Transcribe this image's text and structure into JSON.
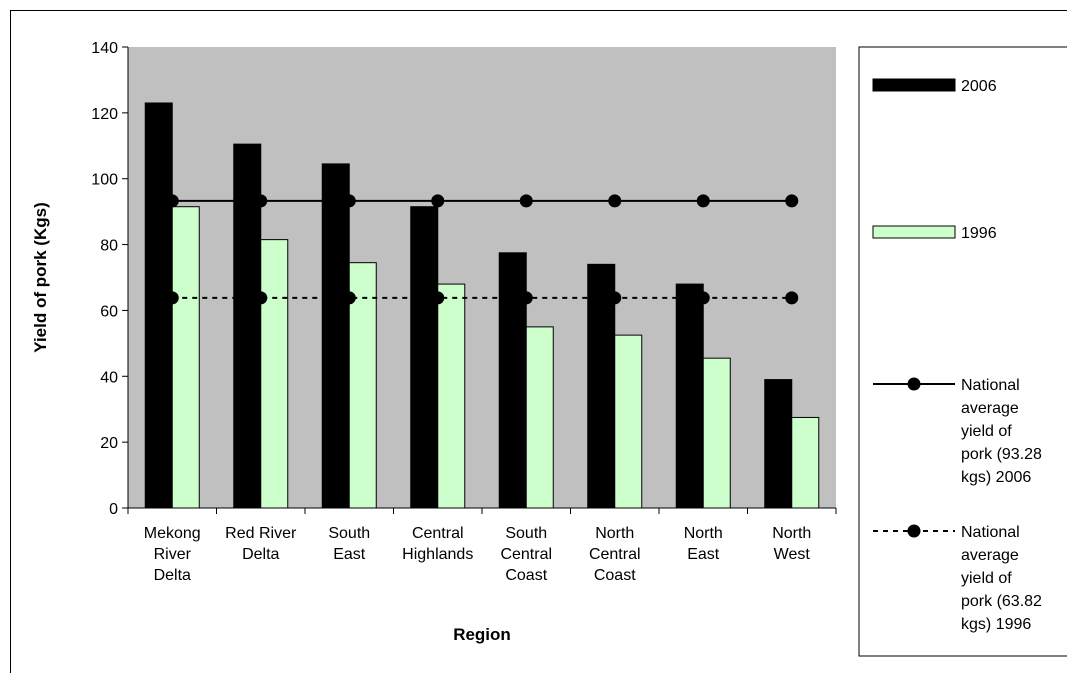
{
  "chart_data": {
    "type": "bar",
    "categories": [
      [
        "Mekong",
        "River",
        "Delta"
      ],
      [
        "Red River",
        "Delta"
      ],
      [
        "South",
        "East"
      ],
      [
        "Central",
        "Highlands"
      ],
      [
        "South",
        "Central",
        "Coast"
      ],
      [
        "North",
        "Central",
        "Coast"
      ],
      [
        "North",
        "East"
      ],
      [
        "North",
        "West"
      ]
    ],
    "series": [
      {
        "name": "2006",
        "color": "#000000",
        "values": [
          123,
          110.5,
          104.5,
          91.5,
          77.5,
          74,
          68,
          39
        ]
      },
      {
        "name": "1996",
        "color": "#ccffcc",
        "values": [
          91.5,
          81.5,
          74.5,
          68,
          55,
          52.5,
          45.5,
          27.5
        ]
      }
    ],
    "reference_lines": [
      {
        "name": [
          "National",
          "average",
          "yield of",
          "pork (93.28",
          "kgs) 2006"
        ],
        "value": 93.28,
        "style": "solid"
      },
      {
        "name": [
          "National",
          "average",
          "yield of",
          "pork (63.82",
          "kgs) 1996"
        ],
        "value": 63.82,
        "style": "dashed"
      }
    ],
    "xlabel": "Region",
    "ylabel": "Yield of pork (Kgs)",
    "ylim": [
      0,
      140
    ],
    "yticks": [
      "0",
      "20",
      "40",
      "60",
      "80",
      "100",
      "120",
      "140"
    ],
    "plot_background": "#c0c0c0",
    "legend_position": "right"
  }
}
